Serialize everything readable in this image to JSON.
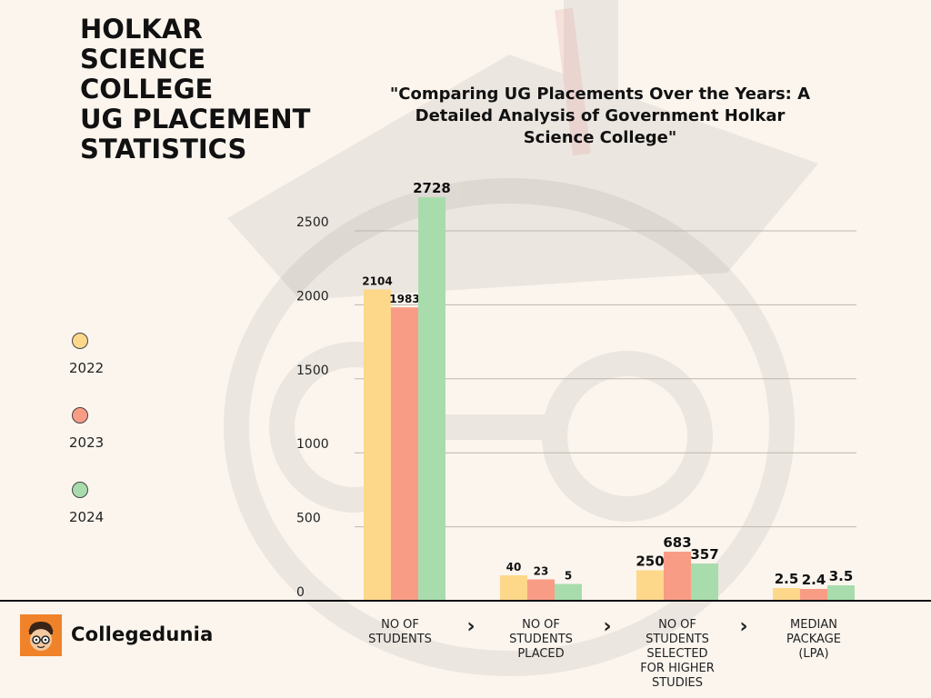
{
  "page_title": [
    "HOLKAR",
    "SCIENCE",
    "COLLEGE",
    "UG PLACEMENT",
    "STATISTICS"
  ],
  "brand": {
    "name": "Collegedunia",
    "logo_icon": "mascot-face-icon"
  },
  "colors": {
    "2022": "#fdd88a",
    "2023": "#f89c86",
    "2024": "#a9dcad",
    "background": "#fbf5ee"
  },
  "chart_data": {
    "type": "bar",
    "title": [
      "\"Comparing UG Placements Over the Years: A",
      "Detailed Analysis of  Government Holkar",
      "Science College\""
    ],
    "categories": [
      [
        "NO OF",
        "STUDENTS"
      ],
      [
        "NO OF",
        "STUDENTS",
        "PLACED"
      ],
      [
        "NO OF",
        "STUDENTS",
        "SELECTED",
        "FOR HIGHER",
        "STUDIES"
      ],
      [
        "MEDIAN",
        "PACKAGE",
        "(LPA)"
      ]
    ],
    "series": [
      {
        "name": "2022",
        "values": [
          2104,
          40,
          250,
          2.5
        ],
        "labels": [
          "2104",
          "40",
          "250",
          "2.5"
        ]
      },
      {
        "name": "2023",
        "values": [
          1983,
          23,
          683,
          2.4
        ],
        "labels": [
          "1983",
          "23",
          "683",
          "2.4"
        ]
      },
      {
        "name": "2024",
        "values": [
          2728,
          5,
          357,
          3.5
        ],
        "labels": [
          "2728",
          "5",
          "357",
          "3.5"
        ]
      }
    ],
    "display_heights": [
      [
        2104,
        280,
        335,
        140
      ],
      [
        1983,
        235,
        540,
        130
      ],
      [
        2728,
        185,
        410,
        170
      ]
    ],
    "yticks": [
      "0",
      "500",
      "1000",
      "1500",
      "2000",
      "2500"
    ],
    "ylim": [
      0,
      2500
    ],
    "grid": true,
    "legend": "left",
    "separator_glyph": "›"
  }
}
